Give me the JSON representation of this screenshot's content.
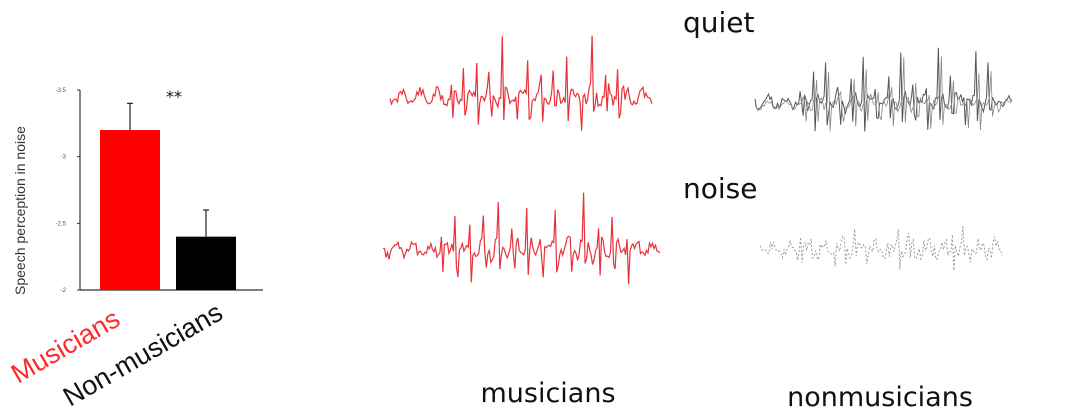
{
  "chart_data": [
    {
      "type": "bar",
      "ylabel": "Speech perception in noise",
      "categories": [
        "Musicians",
        "Non-musicians"
      ],
      "values": [
        -3.2,
        -2.4
      ],
      "errors": [
        0.2,
        0.2
      ],
      "ylim": [
        -2,
        -3.5
      ],
      "y_inverted": true,
      "yticks": [
        -3.5,
        -3,
        -2.5,
        -2
      ],
      "yticklabels": [
        "-3.5",
        "-3",
        "-2.5",
        "-2"
      ],
      "colors": [
        "#ff0000",
        "#000000"
      ],
      "category_label_colors": [
        "#ff2a2a",
        "#111111"
      ],
      "significance": "**",
      "grid": false
    }
  ],
  "waveform_panel": {
    "conditions": [
      "quiet",
      "noise"
    ],
    "groups": [
      "musicians",
      "nonmusicians"
    ],
    "colors": {
      "musicians": "#e8323a",
      "nonmusicians": "#555555"
    }
  }
}
